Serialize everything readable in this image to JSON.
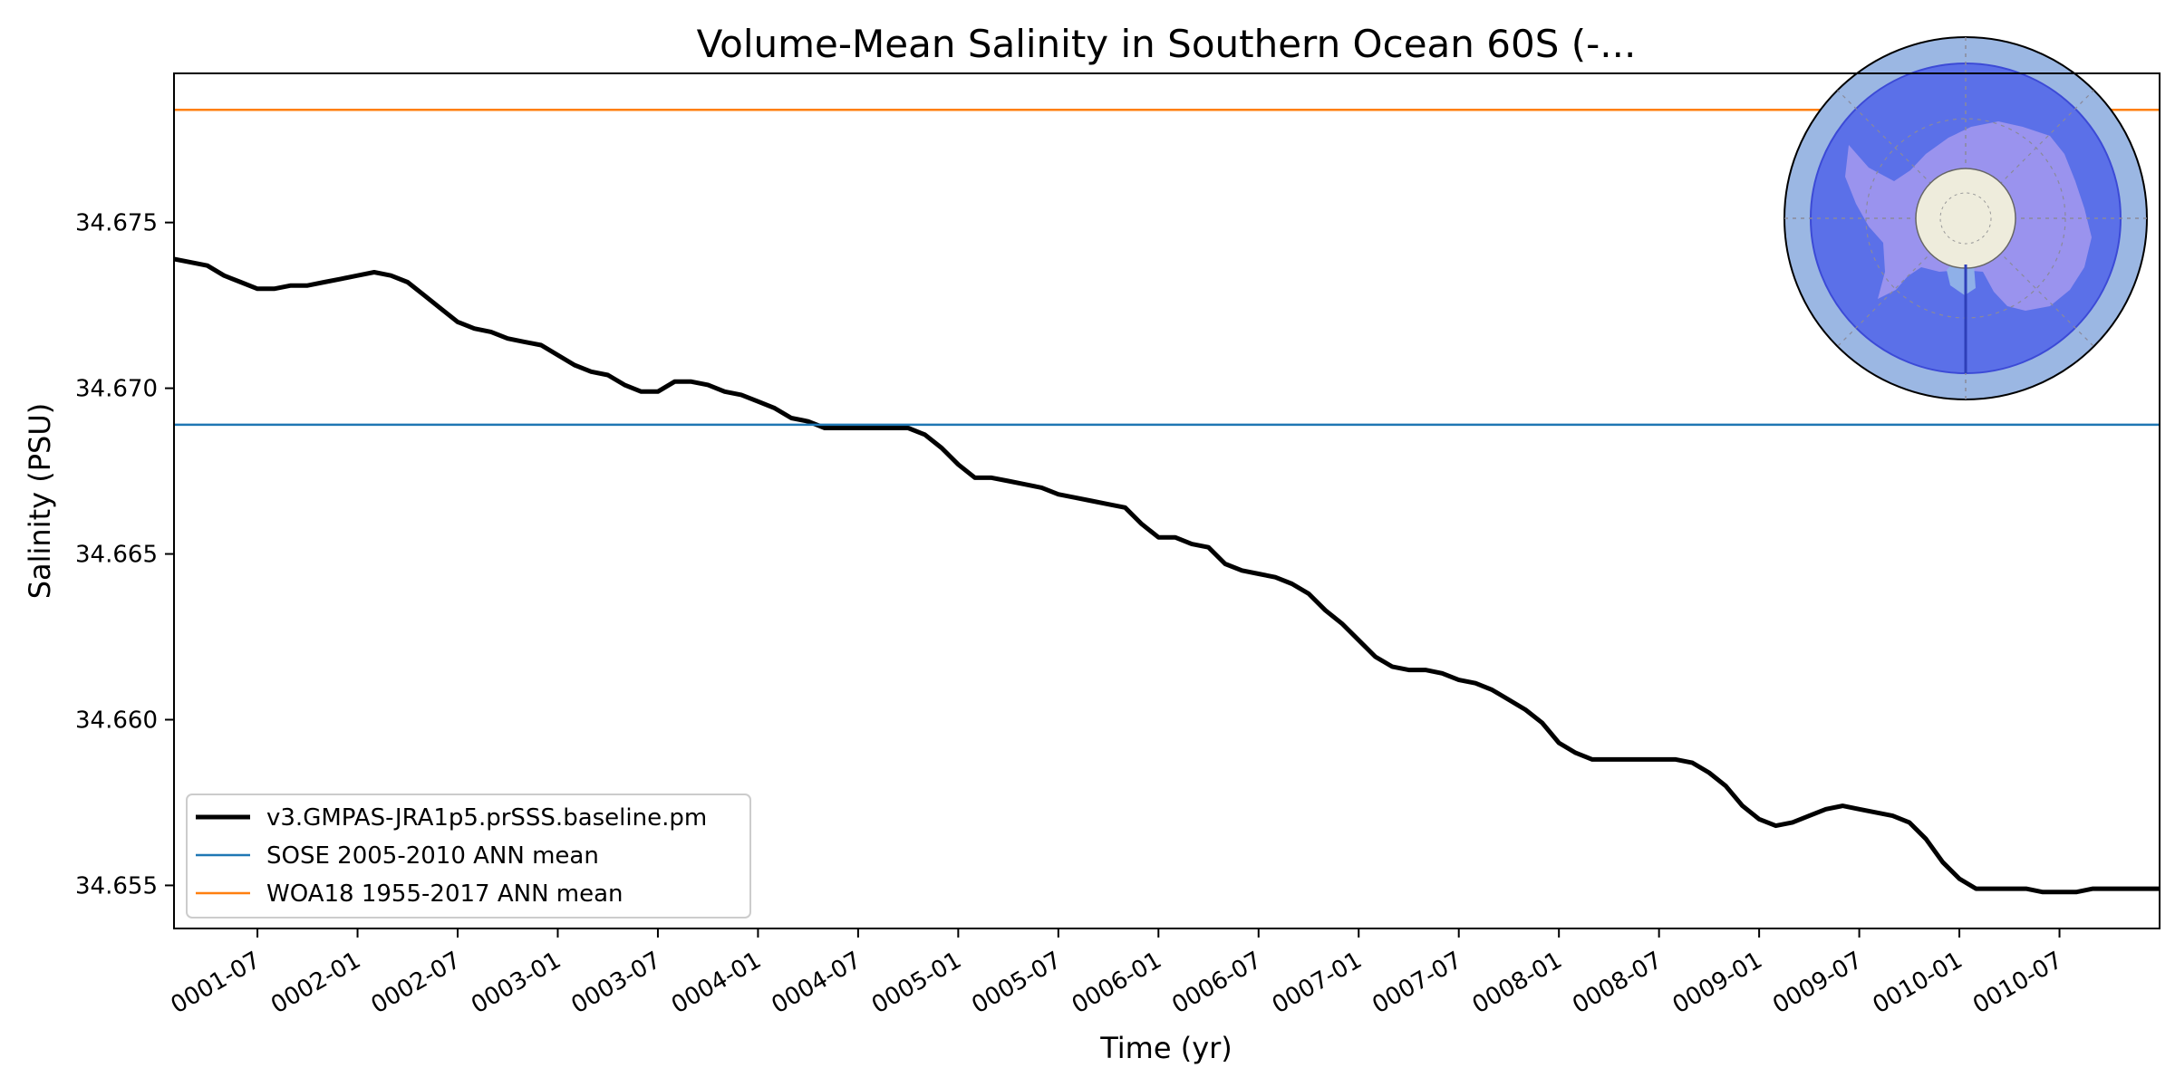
{
  "chart_data": {
    "type": "line",
    "title": "Volume-Mean Salinity in Southern Ocean 60S (-...",
    "xlabel": "Time (yr)",
    "ylabel": "Salinity (PSU)",
    "xlim": [
      0.0833,
      10.0
    ],
    "ylim": [
      34.6537,
      34.6795
    ],
    "grid": false,
    "legend_position": "lower-left",
    "x_ticks": [
      {
        "value": 0.5,
        "label": "0001-07"
      },
      {
        "value": 1.0,
        "label": "0002-01"
      },
      {
        "value": 1.5,
        "label": "0002-07"
      },
      {
        "value": 2.0,
        "label": "0003-01"
      },
      {
        "value": 2.5,
        "label": "0003-07"
      },
      {
        "value": 3.0,
        "label": "0004-01"
      },
      {
        "value": 3.5,
        "label": "0004-07"
      },
      {
        "value": 4.0,
        "label": "0005-01"
      },
      {
        "value": 4.5,
        "label": "0005-07"
      },
      {
        "value": 5.0,
        "label": "0006-01"
      },
      {
        "value": 5.5,
        "label": "0006-07"
      },
      {
        "value": 6.0,
        "label": "0007-01"
      },
      {
        "value": 6.5,
        "label": "0007-07"
      },
      {
        "value": 7.0,
        "label": "0008-01"
      },
      {
        "value": 7.5,
        "label": "0008-07"
      },
      {
        "value": 8.0,
        "label": "0009-01"
      },
      {
        "value": 8.5,
        "label": "0009-07"
      },
      {
        "value": 9.0,
        "label": "0010-01"
      },
      {
        "value": 9.5,
        "label": "0010-07"
      }
    ],
    "y_ticks": [
      {
        "value": 34.655,
        "label": "34.655"
      },
      {
        "value": 34.66,
        "label": "34.660"
      },
      {
        "value": 34.665,
        "label": "34.665"
      },
      {
        "value": 34.67,
        "label": "34.670"
      },
      {
        "value": 34.675,
        "label": "34.675"
      }
    ],
    "series": [
      {
        "name": "v3.GMPAS-JRA1p5.prSSS.baseline.pm",
        "color": "#000000",
        "style": "thick",
        "x": [
          0.0833,
          0.1667,
          0.25,
          0.3333,
          0.4167,
          0.5,
          0.5833,
          0.6667,
          0.75,
          0.8333,
          0.9167,
          1.0,
          1.0833,
          1.1667,
          1.25,
          1.3333,
          1.4167,
          1.5,
          1.5833,
          1.6667,
          1.75,
          1.8333,
          1.9167,
          2.0,
          2.0833,
          2.1667,
          2.25,
          2.3333,
          2.4167,
          2.5,
          2.5833,
          2.6667,
          2.75,
          2.8333,
          2.9167,
          3.0,
          3.0833,
          3.1667,
          3.25,
          3.3333,
          3.4167,
          3.5,
          3.5833,
          3.6667,
          3.75,
          3.8333,
          3.9167,
          4.0,
          4.0833,
          4.1667,
          4.25,
          4.3333,
          4.4167,
          4.5,
          4.5833,
          4.6667,
          4.75,
          4.8333,
          4.9167,
          5.0,
          5.0833,
          5.1667,
          5.25,
          5.3333,
          5.4167,
          5.5,
          5.5833,
          5.6667,
          5.75,
          5.8333,
          5.9167,
          6.0,
          6.0833,
          6.1667,
          6.25,
          6.3333,
          6.4167,
          6.5,
          6.5833,
          6.6667,
          6.75,
          6.8333,
          6.9167,
          7.0,
          7.0833,
          7.1667,
          7.25,
          7.3333,
          7.4167,
          7.5,
          7.5833,
          7.6667,
          7.75,
          7.8333,
          7.9167,
          8.0,
          8.0833,
          8.1667,
          8.25,
          8.3333,
          8.4167,
          8.5,
          8.5833,
          8.6667,
          8.75,
          8.8333,
          8.9167,
          9.0,
          9.0833,
          9.1667,
          9.25,
          9.3333,
          9.4167,
          9.5,
          9.5833,
          9.6667,
          9.75,
          9.8333,
          9.9167,
          10.0
        ],
        "y": [
          34.6739,
          34.6738,
          34.6737,
          34.6734,
          34.6732,
          34.673,
          34.673,
          34.6731,
          34.6731,
          34.6732,
          34.6733,
          34.6734,
          34.6735,
          34.6734,
          34.6732,
          34.6728,
          34.6724,
          34.672,
          34.6718,
          34.6717,
          34.6715,
          34.6714,
          34.6713,
          34.671,
          34.6707,
          34.6705,
          34.6704,
          34.6701,
          34.6699,
          34.6699,
          34.6702,
          34.6702,
          34.6701,
          34.6699,
          34.6698,
          34.6696,
          34.6694,
          34.6691,
          34.669,
          34.6688,
          34.6688,
          34.6688,
          34.6688,
          34.6688,
          34.6688,
          34.6686,
          34.6682,
          34.6677,
          34.6673,
          34.6673,
          34.6672,
          34.6671,
          34.667,
          34.6668,
          34.6667,
          34.6666,
          34.6665,
          34.6664,
          34.6659,
          34.6655,
          34.6655,
          34.6653,
          34.6652,
          34.6647,
          34.6645,
          34.6644,
          34.6643,
          34.6641,
          34.6638,
          34.6633,
          34.6629,
          34.6624,
          34.6619,
          34.6616,
          34.6615,
          34.6615,
          34.6614,
          34.6612,
          34.6611,
          34.6609,
          34.6606,
          34.6603,
          34.6599,
          34.6593,
          34.659,
          34.6588,
          34.6588,
          34.6588,
          34.6588,
          34.6588,
          34.6588,
          34.6587,
          34.6584,
          34.658,
          34.6574,
          34.657,
          34.6568,
          34.6569,
          34.6571,
          34.6573,
          34.6574,
          34.6573,
          34.6572,
          34.6571,
          34.6569,
          34.6564,
          34.6557,
          34.6552,
          34.6549,
          34.6549,
          34.6549,
          34.6549,
          34.6548,
          34.6548,
          34.6548,
          34.6549,
          34.6549,
          34.6549,
          34.6549,
          34.6549
        ]
      },
      {
        "name": "SOSE 2005-2010 ANN mean",
        "color": "#1f77b4",
        "style": "hline",
        "value": 34.6689
      },
      {
        "name": "WOA18 1955-2017 ANN mean",
        "color": "#ff7f0e",
        "style": "hline",
        "value": 34.6784
      }
    ],
    "inset_map": {
      "projection": "south-polar-stereographic",
      "region": "Southern Ocean 60S",
      "ocean_color": "#9bb7e3",
      "region_color": "#5468e8",
      "land_color": "#9a93ee",
      "pole_cap_color": "#eeecdc"
    }
  }
}
